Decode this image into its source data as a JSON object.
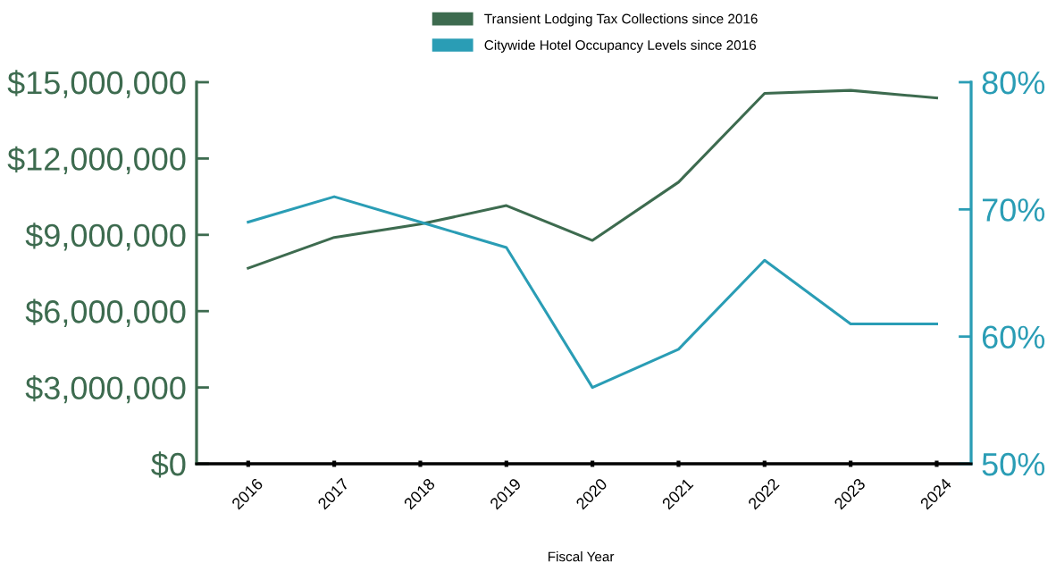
{
  "chart_data": {
    "type": "line",
    "xlabel": "Fiscal Year",
    "categories": [
      "2016",
      "2017",
      "2018",
      "2019",
      "2020",
      "2021",
      "2022",
      "2023",
      "2024"
    ],
    "series": [
      {
        "name": "Transient Lodging Tax Collections since 2016",
        "color": "#3d6b4f",
        "values": [
          7690000,
          8900000,
          9420000,
          10150000,
          8780000,
          11070000,
          14560000,
          14680000,
          14380000
        ]
      },
      {
        "name": "Citywide Hotel Occupancy Levels since 2016",
        "color": "#2a9db5",
        "axis": "y2",
        "values": [
          69,
          71,
          69,
          67,
          56,
          59,
          66,
          61,
          61
        ]
      }
    ],
    "ylim": [
      0,
      15000000
    ],
    "yticks": [
      {
        "value": 0,
        "label": "$0"
      },
      {
        "value": 3000000,
        "label": "$3,000,000"
      },
      {
        "value": 6000000,
        "label": "$6,000,000"
      },
      {
        "value": 9000000,
        "label": "$9,000,000"
      },
      {
        "value": 12000000,
        "label": "$12,000,000"
      },
      {
        "value": 15000000,
        "label": "$15,000,000"
      }
    ],
    "y2lim": [
      50,
      80
    ],
    "y2ticks": [
      {
        "value": 50,
        "label": "50%"
      },
      {
        "value": 60,
        "label": "60%"
      },
      {
        "value": 70,
        "label": "70%"
      },
      {
        "value": 80,
        "label": "80%"
      }
    ],
    "grid": false,
    "legend": "top",
    "marker": "none",
    "line_style": "solid"
  }
}
